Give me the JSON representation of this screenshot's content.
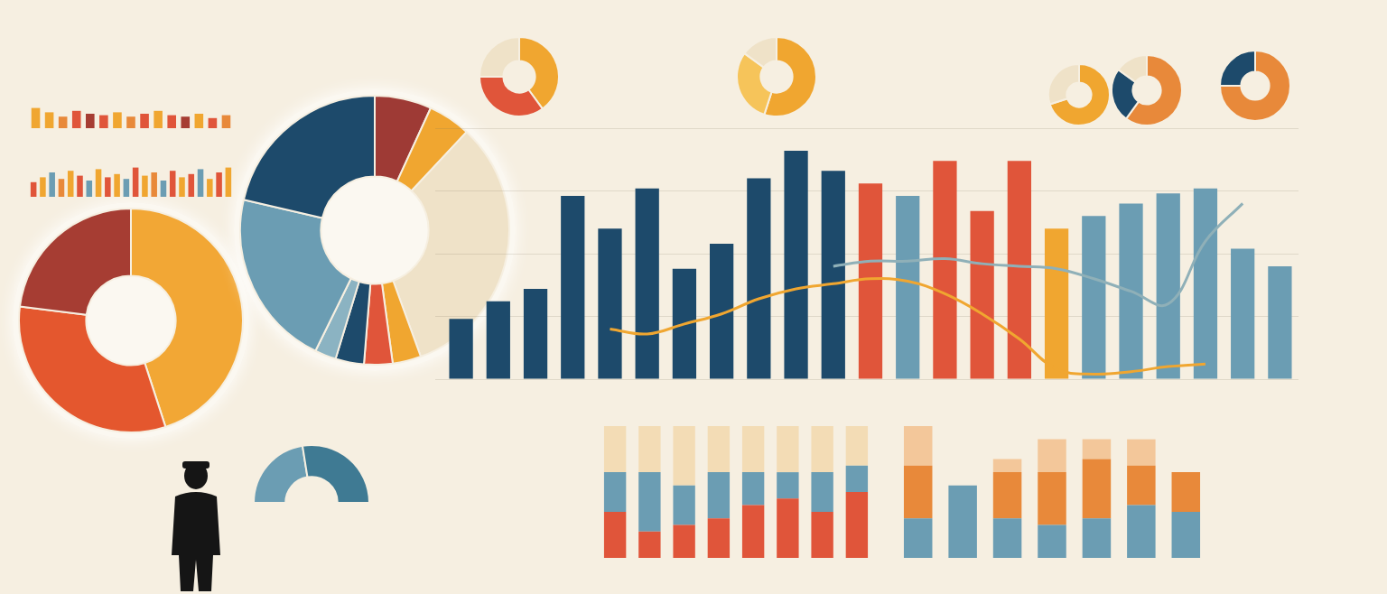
{
  "chart_data": [
    {
      "type": "doughnut",
      "values": [
        45,
        32,
        23
      ],
      "colors": [
        "#f2a735",
        "#e4572e",
        "#a63d33"
      ]
    },
    {
      "type": "doughnut",
      "values": [
        8,
        6,
        38,
        4,
        4,
        4,
        3,
        25,
        25
      ],
      "colors": [
        "#9e3a35",
        "#f0a630",
        "#efe2c8",
        "#f0a630",
        "#e0553a",
        "#1d4a6b",
        "#8bb3c2",
        "#6b9db3",
        "#1d4a6b"
      ]
    },
    {
      "type": "bar",
      "tick_labels": false,
      "grid": true,
      "ylim": [
        0,
        100
      ],
      "yticks": [
        0,
        25,
        50,
        75,
        100
      ],
      "categories": [
        null,
        null,
        null,
        null,
        null,
        null,
        null,
        null,
        null,
        null,
        null,
        null,
        null,
        null,
        null,
        null,
        null,
        null,
        null,
        null,
        null,
        null,
        null
      ],
      "series": [
        {
          "type": "bar",
          "values": [
            24,
            31,
            36,
            73,
            60,
            76,
            44,
            54,
            80,
            91,
            83,
            78,
            73,
            87,
            67,
            87,
            60,
            65,
            70,
            74,
            76,
            52,
            45
          ],
          "colors": [
            "#1d4a6b",
            "#1d4a6b",
            "#1d4a6b",
            "#1d4a6b",
            "#1d4a6b",
            "#1d4a6b",
            "#1d4a6b",
            "#1d4a6b",
            "#1d4a6b",
            "#1d4a6b",
            "#1d4a6b",
            "#e0553a",
            "#6b9db3",
            "#e0553a",
            "#e0553a",
            "#e0553a",
            "#f0a630",
            "#6b9db3",
            "#6b9db3",
            "#6b9db3",
            "#6b9db3",
            "#6b9db3",
            "#6b9db3"
          ]
        },
        {
          "type": "line",
          "color": "#f0a630",
          "values": [
            null,
            null,
            null,
            null,
            20,
            18,
            22,
            26,
            32,
            36,
            38,
            40,
            39,
            34,
            26,
            16,
            4,
            2,
            3,
            5,
            6,
            null,
            null
          ]
        },
        {
          "type": "line",
          "color": "#8fb0b8",
          "values": [
            null,
            null,
            null,
            null,
            null,
            null,
            null,
            null,
            null,
            null,
            45,
            47,
            47,
            48,
            46,
            45,
            44,
            40,
            35,
            30,
            55,
            70,
            null
          ]
        }
      ]
    },
    {
      "type": "bar",
      "tick_labels": false,
      "grid": false,
      "ylim": [
        0,
        100
      ],
      "categories": [
        null,
        null,
        null,
        null,
        null,
        null,
        null,
        null,
        null,
        null,
        null,
        null,
        null,
        null,
        null
      ],
      "values": [
        70,
        55,
        40,
        60,
        50,
        45,
        55,
        40,
        50,
        60,
        45,
        40,
        50,
        35,
        45
      ],
      "colors": [
        "#f0a630",
        "#f0a630",
        "#e8893a",
        "#e0553a",
        "#a63d33",
        "#e0553a",
        "#f0a630",
        "#e8893a",
        "#e0553a",
        "#f0a630",
        "#e0553a",
        "#a63d33",
        "#f0a630",
        "#e0553a",
        "#e8893a"
      ]
    },
    {
      "type": "bar",
      "tick_labels": false,
      "grid": false,
      "ylim": [
        0,
        100
      ],
      "categories": [
        null,
        null,
        null,
        null,
        null,
        null,
        null,
        null,
        null,
        null,
        null,
        null,
        null,
        null,
        null,
        null,
        null,
        null,
        null,
        null,
        null,
        null
      ],
      "values": [
        45,
        60,
        75,
        55,
        80,
        65,
        50,
        85,
        60,
        70,
        55,
        90,
        65,
        75,
        50,
        80,
        60,
        70,
        85,
        55,
        75,
        90
      ],
      "colors": [
        "#e0553a",
        "#f0a630",
        "#6b9db3",
        "#e8893a",
        "#f0a630",
        "#e0553a",
        "#6b9db3",
        "#f0a630",
        "#e0553a",
        "#f0a630",
        "#6b9db3",
        "#e0553a",
        "#f0a630",
        "#e8893a",
        "#6b9db3",
        "#e0553a",
        "#f0a630",
        "#e0553a",
        "#6b9db3",
        "#f0a630",
        "#e0553a",
        "#f0a630"
      ]
    },
    {
      "type": "gauge",
      "values": [
        45,
        55
      ],
      "colors": [
        "#6b9db3",
        "#3f7a93"
      ]
    },
    {
      "type": "bar",
      "stacked": true,
      "tick_labels": false,
      "grid": false,
      "ylim": [
        0,
        100
      ],
      "categories": [
        null,
        null,
        null,
        null,
        null,
        null,
        null,
        null
      ],
      "series": [
        {
          "color": "#e0553a",
          "values": [
            35,
            20,
            25,
            30,
            40,
            45,
            35,
            50
          ]
        },
        {
          "color": "#6b9db3",
          "values": [
            30,
            45,
            30,
            35,
            25,
            20,
            30,
            20
          ]
        },
        {
          "color": "#f3dcb5",
          "values": [
            35,
            35,
            45,
            35,
            35,
            35,
            35,
            30
          ]
        }
      ]
    },
    {
      "type": "bar",
      "stacked": true,
      "tick_labels": false,
      "grid": false,
      "ylim": [
        0,
        100
      ],
      "categories": [
        null,
        null,
        null,
        null,
        null,
        null,
        null
      ],
      "series": [
        {
          "color": "#6b9db3",
          "values": [
            30,
            55,
            30,
            25,
            30,
            40,
            35
          ]
        },
        {
          "color": "#e8893a",
          "values": [
            40,
            0,
            35,
            40,
            45,
            30,
            30
          ]
        },
        {
          "color": "#f3c79a",
          "values": [
            30,
            0,
            10,
            25,
            15,
            20,
            0
          ]
        }
      ]
    },
    {
      "type": "doughnut",
      "values": [
        40,
        35,
        25
      ],
      "colors": [
        "#f0a630",
        "#e0553a",
        "#efe2c8"
      ]
    },
    {
      "type": "doughnut",
      "values": [
        55,
        30,
        15
      ],
      "colors": [
        "#f0a630",
        "#f6c45a",
        "#efe2c8"
      ]
    },
    {
      "type": "doughnut",
      "values": [
        70,
        30
      ],
      "colors": [
        "#f0a630",
        "#efe2c8"
      ]
    },
    {
      "type": "doughnut",
      "values": [
        60,
        25,
        15
      ],
      "colors": [
        "#e8893a",
        "#1d4a6b",
        "#efe2c8"
      ]
    },
    {
      "type": "doughnut",
      "values": [
        75,
        25
      ],
      "colors": [
        "#e8893a",
        "#1d4a6b"
      ]
    }
  ]
}
